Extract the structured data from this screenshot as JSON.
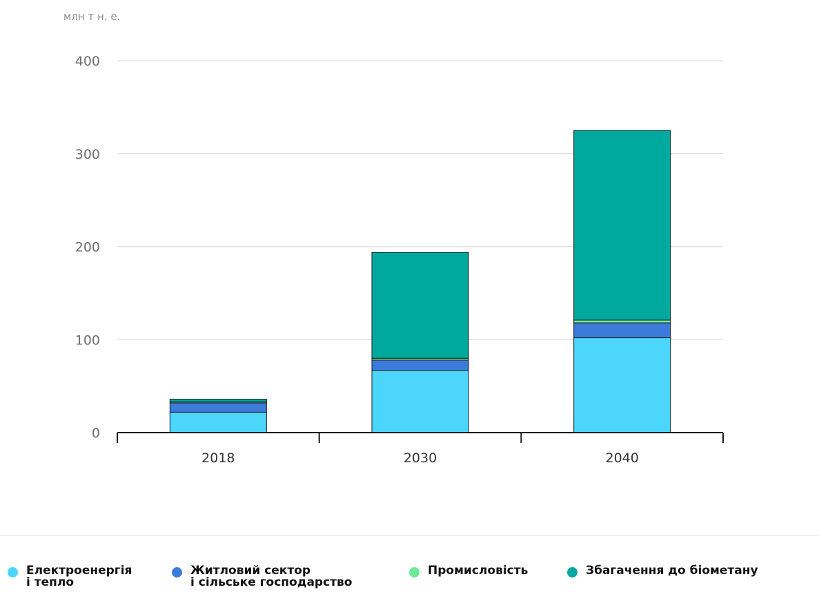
{
  "chart_data": {
    "type": "bar",
    "stacked": true,
    "unit_label": "млн т н. е.",
    "categories": [
      "2018",
      "2030",
      "2040"
    ],
    "series": [
      {
        "name": "Електроенергія\nі тепло",
        "color": "#4dd6fc",
        "values": [
          22,
          67,
          102
        ]
      },
      {
        "name": "Житловий сектор\nі сільське господарство",
        "color": "#3d7bdb",
        "values": [
          10,
          11,
          16
        ]
      },
      {
        "name": "Промисловість",
        "color": "#6fe896",
        "values": [
          1,
          2,
          3
        ]
      },
      {
        "name": "Збагачення до біометану",
        "color": "#00a99d",
        "values": [
          3,
          114,
          204
        ]
      }
    ],
    "yticks": [
      0,
      100,
      200,
      300,
      400
    ],
    "ylim": [
      0,
      400
    ],
    "grid": true,
    "legend_position": "bottom"
  }
}
